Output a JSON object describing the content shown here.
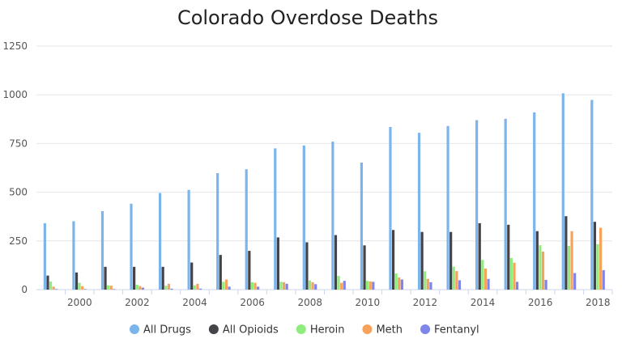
{
  "chart_data": {
    "type": "bar",
    "title": "Colorado Overdose Deaths",
    "xlabel": "",
    "ylabel": "",
    "ylim": [
      0,
      1250
    ],
    "yticks": [
      0,
      250,
      500,
      750,
      1000,
      1250
    ],
    "categories": [
      "1999",
      "2000",
      "2001",
      "2002",
      "2003",
      "2004",
      "2005",
      "2006",
      "2007",
      "2008",
      "2009",
      "2010",
      "2011",
      "2012",
      "2013",
      "2014",
      "2015",
      "2016",
      "2017",
      "2018"
    ],
    "xtick_labels": [
      "2000",
      "2002",
      "2004",
      "2006",
      "2008",
      "2010",
      "2012",
      "2014",
      "2016",
      "2018"
    ],
    "legend_position": "bottom",
    "grid": true,
    "series": [
      {
        "name": "All Drugs",
        "color": "#7cb5ec",
        "values": [
          341,
          351,
          403,
          441,
          496,
          512,
          598,
          618,
          725,
          740,
          760,
          652,
          835,
          805,
          840,
          870,
          877,
          910,
          1008,
          974
        ]
      },
      {
        "name": "All Opioids",
        "color": "#434348",
        "values": [
          72,
          88,
          117,
          117,
          117,
          139,
          178,
          199,
          268,
          243,
          280,
          227,
          306,
          296,
          296,
          341,
          333,
          300,
          377,
          348
        ]
      },
      {
        "name": "Heroin",
        "color": "#90ed7d",
        "values": [
          42,
          35,
          22,
          25,
          20,
          22,
          40,
          38,
          40,
          47,
          70,
          45,
          83,
          94,
          118,
          152,
          162,
          228,
          224,
          233
        ]
      },
      {
        "name": "Meth",
        "color": "#f7a35c",
        "values": [
          15,
          18,
          20,
          18,
          30,
          30,
          52,
          35,
          38,
          38,
          35,
          42,
          62,
          55,
          95,
          108,
          138,
          195,
          300,
          318
        ]
      },
      {
        "name": "Fentanyl",
        "color": "#8085e9",
        "values": [
          3,
          3,
          3,
          10,
          5,
          5,
          15,
          15,
          30,
          28,
          45,
          40,
          52,
          38,
          48,
          55,
          40,
          50,
          85,
          100
        ]
      }
    ]
  }
}
